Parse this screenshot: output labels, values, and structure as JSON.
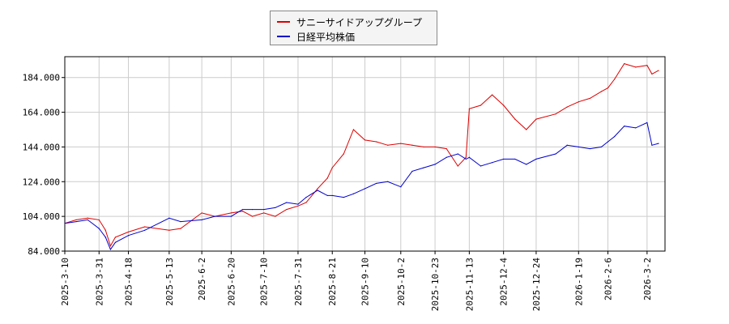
{
  "chart_data": {
    "type": "line",
    "title": "",
    "xlabel": "",
    "ylabel": "",
    "ylim": [
      84,
      196
    ],
    "yticks": [
      "84.000",
      "104.000",
      "124.000",
      "144.000",
      "164.000",
      "184.000"
    ],
    "x_tick_labels": [
      "2025-3-10",
      "2025-3-31",
      "2025-4-18",
      "2025-5-13",
      "2025-6-2",
      "2025-6-20",
      "2025-7-10",
      "2025-7-31",
      "2025-8-21",
      "2025-9-10",
      "2025-10-2",
      "2025-10-23",
      "2025-11-13",
      "2025-12-4",
      "2025-12-24",
      "2026-1-19",
      "2026-2-6",
      "2026-3-2"
    ],
    "grid": true,
    "legend_position": "top-center",
    "series": [
      {
        "name": "サニーサイドアップグループ",
        "color": "#dd0000",
        "x": [
          "2025-3-10",
          "2025-3-17",
          "2025-3-24",
          "2025-3-31",
          "2025-4-4",
          "2025-4-7",
          "2025-4-10",
          "2025-4-18",
          "2025-4-28",
          "2025-5-13",
          "2025-5-20",
          "2025-6-2",
          "2025-6-10",
          "2025-6-20",
          "2025-6-27",
          "2025-7-3",
          "2025-7-10",
          "2025-7-17",
          "2025-7-24",
          "2025-7-31",
          "2025-8-5",
          "2025-8-12",
          "2025-8-18",
          "2025-8-21",
          "2025-8-28",
          "2025-9-3",
          "2025-9-10",
          "2025-9-17",
          "2025-9-24",
          "2025-10-2",
          "2025-10-9",
          "2025-10-16",
          "2025-10-23",
          "2025-10-30",
          "2025-11-6",
          "2025-11-11",
          "2025-11-13",
          "2025-11-20",
          "2025-11-27",
          "2025-12-4",
          "2025-12-11",
          "2025-12-18",
          "2025-12-24",
          "2026-1-5",
          "2026-1-12",
          "2026-1-19",
          "2026-1-26",
          "2026-2-2",
          "2026-2-6",
          "2026-2-10",
          "2026-2-16",
          "2026-2-23",
          "2026-3-2",
          "2026-3-5",
          "2026-3-9"
        ],
        "values": [
          100,
          102,
          103,
          102,
          96,
          87,
          92,
          95,
          98,
          96,
          97,
          106,
          104,
          106,
          107,
          104,
          106,
          104,
          108,
          110,
          112,
          120,
          126,
          132,
          140,
          154,
          148,
          147,
          145,
          146,
          145,
          144,
          144,
          143,
          133,
          138,
          166,
          168,
          174,
          168,
          160,
          154,
          160,
          163,
          167,
          170,
          172,
          176,
          178,
          183,
          192,
          190,
          191,
          186,
          188
        ]
      },
      {
        "name": "日経平均株価",
        "color": "#0000cc",
        "x": [
          "2025-3-10",
          "2025-3-17",
          "2025-3-24",
          "2025-3-31",
          "2025-4-4",
          "2025-4-7",
          "2025-4-10",
          "2025-4-18",
          "2025-4-28",
          "2025-5-13",
          "2025-5-20",
          "2025-6-2",
          "2025-6-10",
          "2025-6-20",
          "2025-6-27",
          "2025-7-3",
          "2025-7-10",
          "2025-7-17",
          "2025-7-24",
          "2025-7-31",
          "2025-8-5",
          "2025-8-12",
          "2025-8-18",
          "2025-8-21",
          "2025-8-28",
          "2025-9-3",
          "2025-9-10",
          "2025-9-17",
          "2025-9-24",
          "2025-10-2",
          "2025-10-9",
          "2025-10-16",
          "2025-10-23",
          "2025-10-30",
          "2025-11-6",
          "2025-11-11",
          "2025-11-13",
          "2025-11-20",
          "2025-11-27",
          "2025-12-4",
          "2025-12-11",
          "2025-12-18",
          "2025-12-24",
          "2026-1-5",
          "2026-1-12",
          "2026-1-19",
          "2026-1-26",
          "2026-2-2",
          "2026-2-6",
          "2026-2-10",
          "2026-2-16",
          "2026-2-23",
          "2026-3-2",
          "2026-3-5",
          "2026-3-9"
        ],
        "values": [
          100,
          101,
          102,
          97,
          92,
          85,
          89,
          93,
          96,
          103,
          101,
          102,
          104,
          104,
          108,
          108,
          108,
          109,
          112,
          111,
          115,
          119,
          116,
          116,
          115,
          117,
          120,
          123,
          124,
          121,
          130,
          132,
          134,
          138,
          140,
          137,
          138,
          133,
          135,
          137,
          137,
          134,
          137,
          140,
          145,
          144,
          143,
          144,
          147,
          150,
          156,
          155,
          158,
          145,
          146
        ]
      }
    ]
  }
}
